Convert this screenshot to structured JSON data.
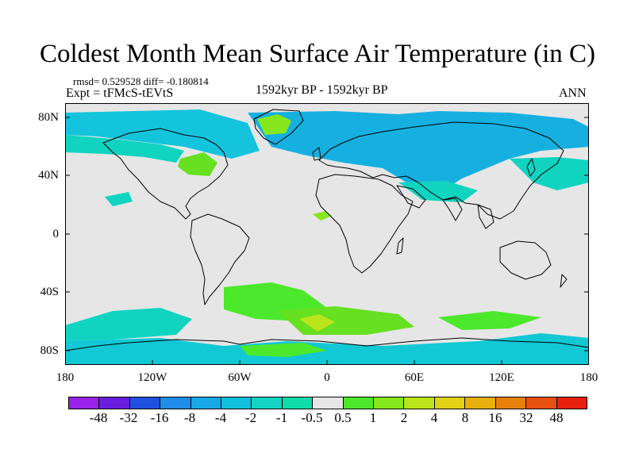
{
  "title": "Coldest Month Mean Surface Air Temperature (in C)",
  "stats_text": "rmsd= 0.529528  diff= -0.180814",
  "experiment_text": "Expt = tFMcS-tEVtS",
  "period_text": "1592kyr BP - 1592kyr BP",
  "season": "ANN",
  "lat_labels": [
    "80N",
    "40N",
    "0",
    "40S",
    "80S"
  ],
  "lon_labels": [
    "180",
    "120W",
    "60W",
    "0",
    "60E",
    "120E",
    "180"
  ],
  "colorbar": {
    "labels": [
      "-48",
      "-32",
      "-16",
      "-8",
      "-4",
      "-2",
      "-1",
      "-0.5",
      "0.5",
      "1",
      "2",
      "4",
      "8",
      "16",
      "32",
      "48"
    ],
    "colors": [
      "#9a22e8",
      "#6a1ee0",
      "#2050e0",
      "#1e8ce8",
      "#16a9e6",
      "#10c0dc",
      "#14d4c4",
      "#10dca8",
      "#e6e6e6",
      "#4ce82c",
      "#86e81c",
      "#bce41a",
      "#e2d214",
      "#e8b00e",
      "#e8800c",
      "#e85010",
      "#e6200e"
    ]
  },
  "map": {
    "background_color": "#e6e6e6",
    "land_outline_color": "#000000"
  }
}
